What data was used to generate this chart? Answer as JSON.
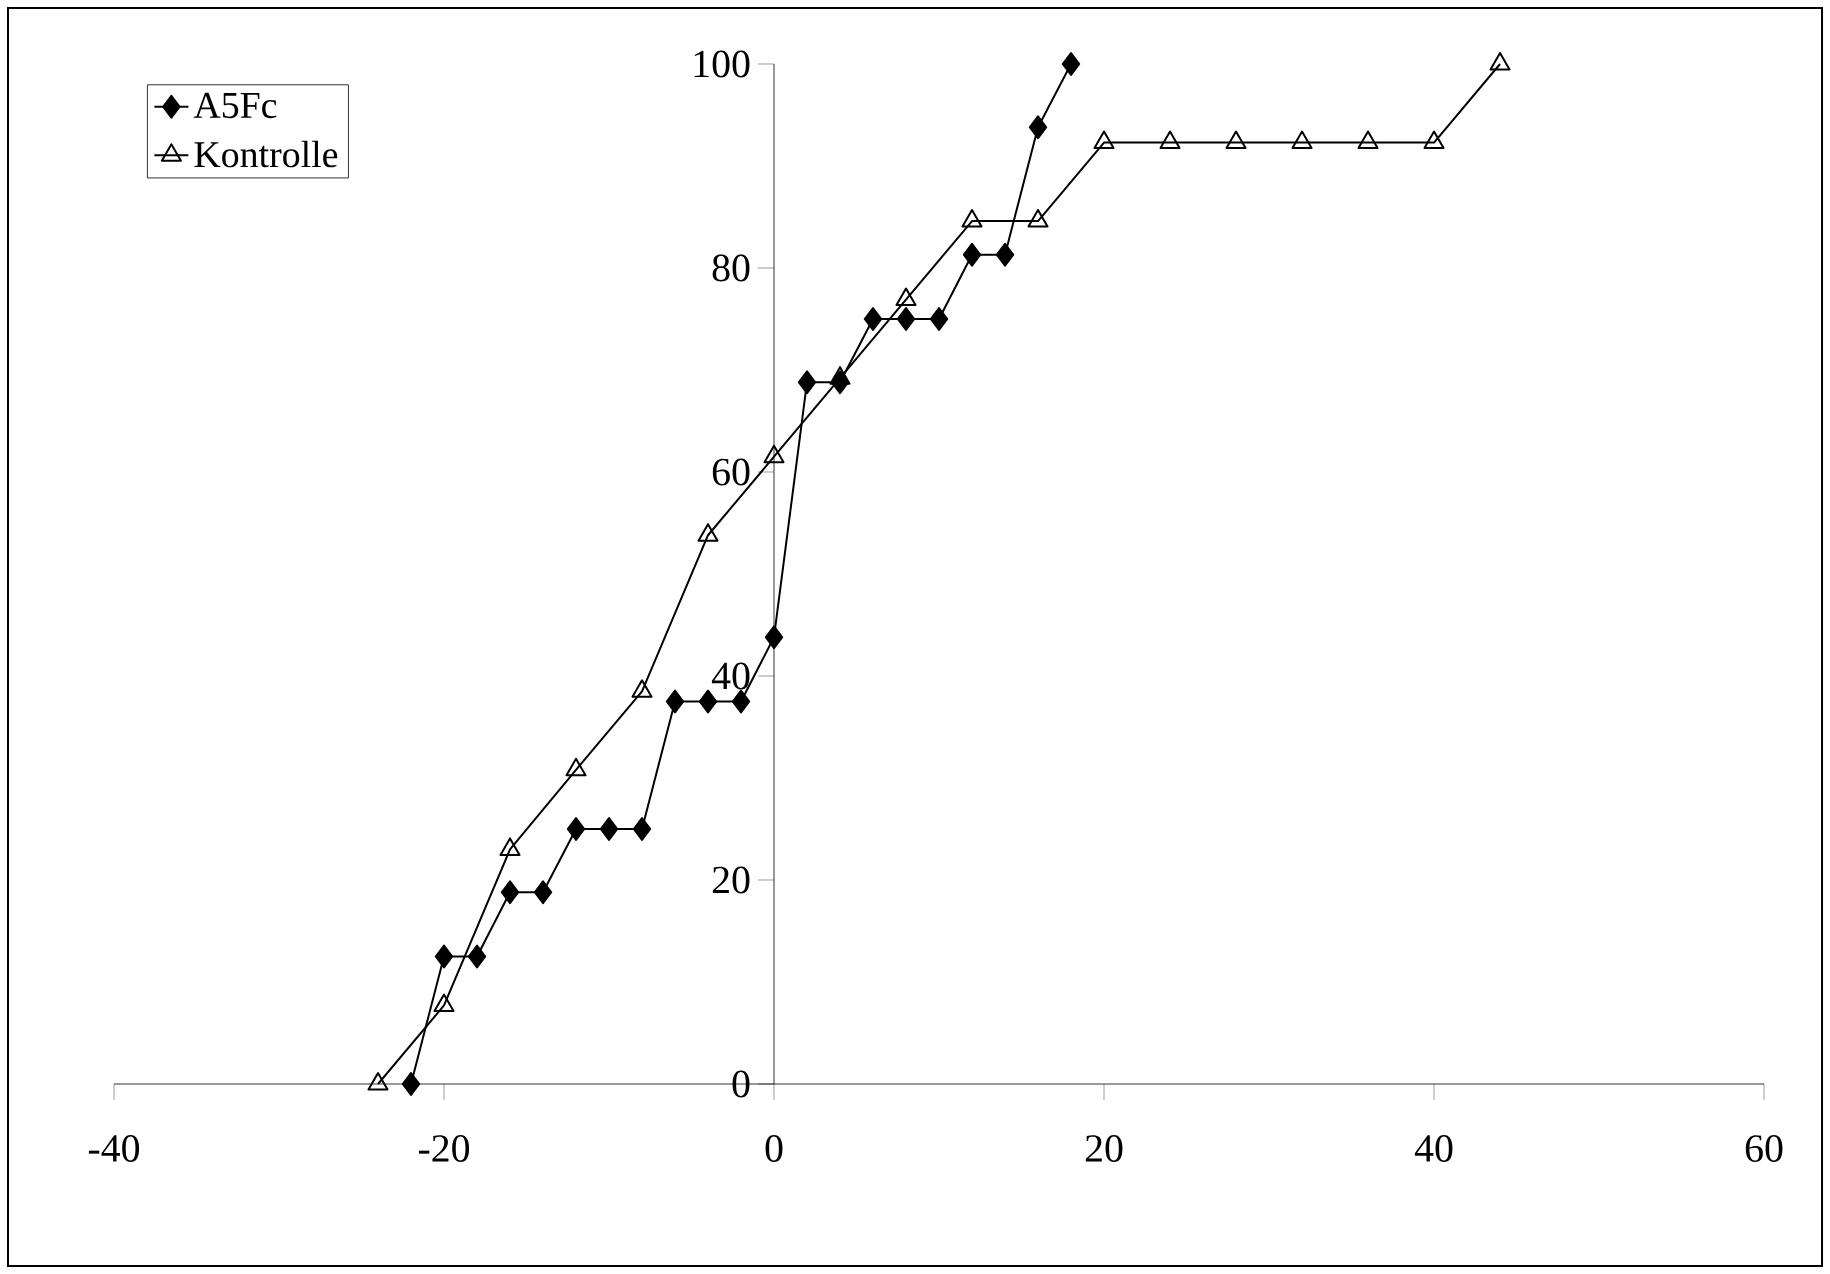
{
  "chart_data": {
    "type": "line",
    "series": [
      {
        "name": "A5Fc",
        "color": "#000000",
        "marker": "diamond",
        "x": [
          -22,
          -20,
          -18,
          -16,
          -14,
          -12,
          -10,
          -8,
          -6,
          -4,
          -2,
          0,
          2,
          4,
          6,
          8,
          10,
          12,
          14,
          16,
          18
        ],
        "values": [
          0,
          12.5,
          12.5,
          18.8,
          18.8,
          25,
          25,
          25,
          37.5,
          37.5,
          37.5,
          43.8,
          68.8,
          68.8,
          75,
          75,
          75,
          81.3,
          81.3,
          93.8,
          100
        ]
      },
      {
        "name": "Kontrolle",
        "color": "#000000",
        "marker": "triangle",
        "x": [
          -24,
          -20,
          -16,
          -12,
          -8,
          -4,
          0,
          4,
          8,
          12,
          16,
          20,
          24,
          28,
          32,
          36,
          40,
          44
        ],
        "values": [
          0,
          7.7,
          23,
          30.8,
          38.5,
          53.8,
          61.5,
          69.2,
          76.9,
          84.6,
          84.6,
          92.3,
          92.3,
          92.3,
          92.3,
          92.3,
          92.3,
          100
        ]
      }
    ],
    "xlim": [
      -40,
      60
    ],
    "xticks": [
      -40,
      -20,
      0,
      20,
      40,
      60
    ],
    "ylim": [
      0,
      100
    ],
    "yticks": [
      0,
      20,
      40,
      60,
      80,
      100
    ],
    "grid": false,
    "legend": "top left"
  }
}
